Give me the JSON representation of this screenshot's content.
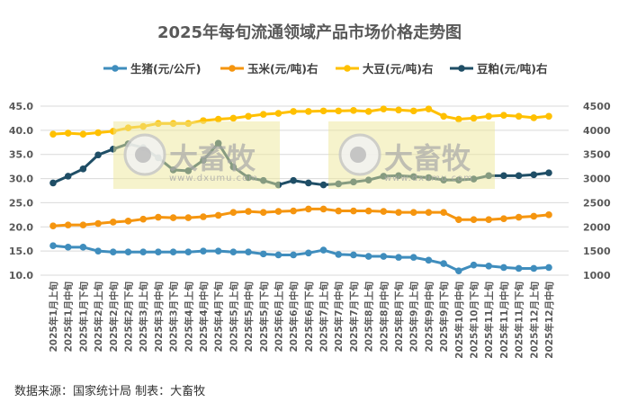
{
  "chart_data": {
    "type": "line",
    "title": "2025年每旬流通领域产品市场价格走势图",
    "categories": [
      "2025年1月上旬",
      "2025年1月中旬",
      "2025年1月下旬",
      "2025年2月上旬",
      "2025年2月中旬",
      "2025年2月下旬",
      "2025年3月上旬",
      "2025年3月中旬",
      "2025年3月下旬",
      "2025年4月上旬",
      "2025年4月中旬",
      "2025年4月下旬",
      "2025年5月上旬",
      "2025年5月中旬",
      "2025年5月下旬",
      "2025年6月上旬",
      "2025年6月中旬",
      "2025年6月下旬",
      "2025年7月上旬",
      "2025年7月中旬",
      "2025年7月下旬",
      "2025年8月上旬",
      "2025年8月中旬",
      "2025年8月下旬",
      "2025年9月上旬",
      "2025年9月中旬",
      "2025年9月下旬",
      "2025年10月中旬",
      "2025年10月下旬",
      "2025年11月上旬",
      "2025年11月中旬",
      "2025年11月下旬",
      "2025年12月上旬",
      "2025年12月中旬"
    ],
    "left_axis": {
      "ylim": [
        10,
        45
      ],
      "ticks": [
        "10.0",
        "15.0",
        "20.0",
        "25.0",
        "30.0",
        "35.0",
        "40.0",
        "45.0"
      ]
    },
    "right_axis": {
      "ylim": [
        1000,
        4500
      ],
      "ticks": [
        "1000",
        "1500",
        "2000",
        "2500",
        "3000",
        "3500",
        "4000",
        "4500"
      ]
    },
    "grid": true,
    "legend_position": "top",
    "series": [
      {
        "name": "生猪(元/公斤)",
        "axis": "left",
        "color": "#3f8dbd",
        "values": [
          16.1,
          15.8,
          15.8,
          15.0,
          14.8,
          14.8,
          14.8,
          14.8,
          14.8,
          14.8,
          15.0,
          15.0,
          14.8,
          14.8,
          14.4,
          14.2,
          14.2,
          14.6,
          15.2,
          14.3,
          14.2,
          13.9,
          13.9,
          13.7,
          13.7,
          13.1,
          12.4,
          10.9,
          12.1,
          11.9,
          11.6,
          11.4,
          11.4,
          11.6
        ]
      },
      {
        "name": "玉米(元/吨)右",
        "axis": "right",
        "color": "#f5950f",
        "values": [
          2020,
          2040,
          2040,
          2070,
          2100,
          2120,
          2160,
          2200,
          2190,
          2190,
          2210,
          2240,
          2300,
          2320,
          2300,
          2320,
          2330,
          2370,
          2370,
          2330,
          2330,
          2330,
          2320,
          2300,
          2300,
          2300,
          2300,
          2150,
          2150,
          2150,
          2170,
          2200,
          2220,
          2250
        ]
      },
      {
        "name": "大豆(元/吨)右",
        "axis": "right",
        "color": "#ffc000",
        "values": [
          3920,
          3940,
          3920,
          3950,
          3980,
          4050,
          4080,
          4140,
          4140,
          4140,
          4200,
          4230,
          4250,
          4290,
          4330,
          4350,
          4390,
          4390,
          4400,
          4400,
          4410,
          4390,
          4440,
          4420,
          4400,
          4440,
          4290,
          4230,
          4250,
          4290,
          4310,
          4290,
          4260,
          4290
        ]
      },
      {
        "name": "豆粕(元/吨)右",
        "axis": "right",
        "color": "#1f4e66",
        "values": [
          2910,
          3050,
          3200,
          3490,
          3610,
          3720,
          3640,
          3430,
          3180,
          3160,
          3380,
          3730,
          3240,
          3020,
          2960,
          2870,
          2960,
          2910,
          2870,
          2890,
          2930,
          2970,
          3050,
          3060,
          3040,
          3020,
          2970,
          2970,
          2990,
          3060,
          3060,
          3060,
          3080,
          3120
        ]
      }
    ]
  },
  "watermark": {
    "brand": "大畜牧",
    "url": "www.dxumu.com"
  },
  "footer": {
    "source": "数据来源：国家统计局  制表：大畜牧"
  }
}
